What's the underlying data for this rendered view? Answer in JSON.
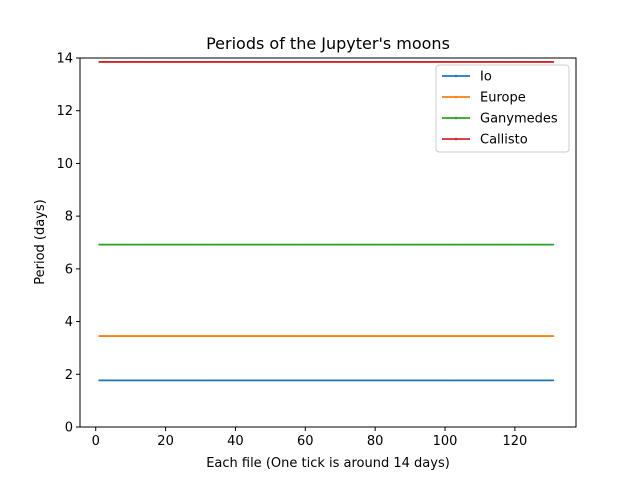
{
  "chart_data": {
    "type": "line",
    "title": "Periods of the Jupyter's moons",
    "xlabel": "Each file (One tick is around 14 days)",
    "ylabel": "Period (days)",
    "xlim": [
      -4.5,
      137.5
    ],
    "ylim": [
      0,
      14
    ],
    "xticks": [
      0,
      20,
      40,
      60,
      80,
      100,
      120
    ],
    "yticks": [
      0,
      2,
      4,
      6,
      8,
      10,
      12,
      14
    ],
    "x_range": [
      1,
      131
    ],
    "grid": false,
    "legend_position": "top-right",
    "series": [
      {
        "name": "Io",
        "color": "#1f77b4",
        "value": 1.77
      },
      {
        "name": "Europe",
        "color": "#ff7f0e",
        "value": 3.45
      },
      {
        "name": "Ganymedes",
        "color": "#2ca02c",
        "value": 6.92
      },
      {
        "name": "Callisto",
        "color": "#d62728",
        "value": 13.85
      }
    ]
  }
}
